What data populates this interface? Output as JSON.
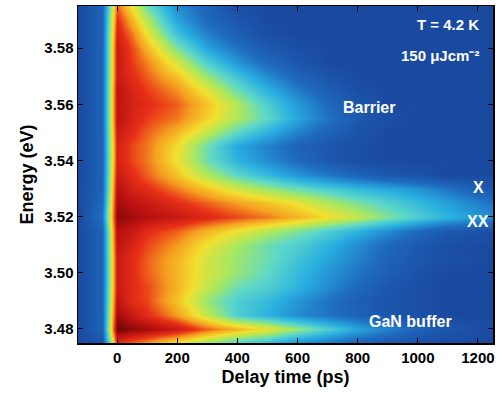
{
  "chart_data": {
    "type": "heatmap",
    "xlabel": "Delay time (ps)",
    "ylabel": "Energy (eV)",
    "annotations": [
      "T = 4.2 K",
      "150 μJcm⁻²",
      "Barrier",
      "X",
      "XX",
      "GaN buffer"
    ],
    "xlim": [
      -130,
      1250
    ],
    "xticks": [
      0,
      200,
      400,
      600,
      800,
      1000,
      1200
    ],
    "ylim": [
      3.475,
      3.595
    ],
    "yticks": [
      3.48,
      {
        "value": 3.5,
        "label": "3.50"
      },
      3.52,
      3.54,
      3.56,
      3.58
    ],
    "x": [
      -130,
      -50,
      0,
      50,
      100,
      200,
      300,
      400,
      500,
      600,
      700,
      800,
      900,
      1000,
      1100,
      1250
    ],
    "y": [
      3.475,
      3.48,
      3.485,
      3.49,
      3.495,
      3.5,
      3.505,
      3.51,
      3.515,
      3.52,
      3.525,
      3.53,
      3.535,
      3.54,
      3.545,
      3.55,
      3.555,
      3.56,
      3.565,
      3.57,
      3.575,
      3.58,
      3.585,
      3.59,
      3.595
    ],
    "cells": [
      [
        0.1,
        0.15,
        0.85,
        0.8,
        0.75,
        0.65,
        0.55,
        0.45,
        0.4,
        0.3,
        0.25,
        0.2,
        0.15,
        0.12,
        0.1,
        0.1
      ],
      [
        0.1,
        0.2,
        1.0,
        0.97,
        0.95,
        0.9,
        0.8,
        0.72,
        0.65,
        0.55,
        0.45,
        0.35,
        0.28,
        0.2,
        0.15,
        0.1
      ],
      [
        0.1,
        0.2,
        0.95,
        0.9,
        0.85,
        0.75,
        0.6,
        0.45,
        0.38,
        0.3,
        0.25,
        0.2,
        0.15,
        0.12,
        0.1,
        0.1
      ],
      [
        0.1,
        0.2,
        0.92,
        0.85,
        0.82,
        0.7,
        0.55,
        0.45,
        0.4,
        0.32,
        0.25,
        0.18,
        0.14,
        0.12,
        0.1,
        0.1
      ],
      [
        0.1,
        0.2,
        0.9,
        0.85,
        0.82,
        0.72,
        0.6,
        0.5,
        0.45,
        0.38,
        0.3,
        0.22,
        0.15,
        0.12,
        0.1,
        0.1
      ],
      [
        0.1,
        0.2,
        0.9,
        0.85,
        0.8,
        0.72,
        0.62,
        0.55,
        0.48,
        0.4,
        0.32,
        0.25,
        0.18,
        0.13,
        0.1,
        0.1
      ],
      [
        0.1,
        0.2,
        0.9,
        0.85,
        0.8,
        0.72,
        0.62,
        0.55,
        0.5,
        0.42,
        0.35,
        0.28,
        0.2,
        0.15,
        0.12,
        0.1
      ],
      [
        0.1,
        0.2,
        0.92,
        0.87,
        0.82,
        0.75,
        0.65,
        0.57,
        0.5,
        0.45,
        0.38,
        0.3,
        0.22,
        0.16,
        0.12,
        0.1
      ],
      [
        0.1,
        0.2,
        0.93,
        0.9,
        0.85,
        0.8,
        0.72,
        0.65,
        0.58,
        0.52,
        0.45,
        0.38,
        0.3,
        0.22,
        0.16,
        0.12
      ],
      [
        0.1,
        0.25,
        0.97,
        0.95,
        0.93,
        0.9,
        0.86,
        0.82,
        0.78,
        0.72,
        0.66,
        0.6,
        0.52,
        0.45,
        0.38,
        0.3
      ],
      [
        0.1,
        0.22,
        0.95,
        0.92,
        0.9,
        0.85,
        0.8,
        0.75,
        0.7,
        0.65,
        0.58,
        0.52,
        0.46,
        0.4,
        0.34,
        0.25
      ],
      [
        0.1,
        0.2,
        0.93,
        0.88,
        0.85,
        0.78,
        0.7,
        0.62,
        0.56,
        0.5,
        0.45,
        0.4,
        0.36,
        0.32,
        0.25,
        0.15
      ],
      [
        0.1,
        0.2,
        0.9,
        0.85,
        0.8,
        0.7,
        0.58,
        0.48,
        0.4,
        0.32,
        0.26,
        0.2,
        0.16,
        0.13,
        0.1,
        0.1
      ],
      [
        0.1,
        0.2,
        0.88,
        0.82,
        0.78,
        0.65,
        0.5,
        0.38,
        0.3,
        0.22,
        0.16,
        0.12,
        0.1,
        0.1,
        0.1,
        0.1
      ],
      [
        0.1,
        0.2,
        0.88,
        0.82,
        0.78,
        0.66,
        0.5,
        0.36,
        0.28,
        0.2,
        0.15,
        0.12,
        0.1,
        0.1,
        0.1,
        0.1
      ],
      [
        0.1,
        0.2,
        0.9,
        0.85,
        0.8,
        0.72,
        0.6,
        0.48,
        0.38,
        0.28,
        0.2,
        0.14,
        0.1,
        0.1,
        0.1,
        0.1
      ],
      [
        0.1,
        0.2,
        0.92,
        0.87,
        0.83,
        0.78,
        0.68,
        0.58,
        0.48,
        0.35,
        0.25,
        0.16,
        0.12,
        0.1,
        0.1,
        0.1
      ],
      [
        0.1,
        0.2,
        0.92,
        0.88,
        0.85,
        0.8,
        0.7,
        0.58,
        0.45,
        0.33,
        0.22,
        0.15,
        0.1,
        0.1,
        0.1,
        0.1
      ],
      [
        0.1,
        0.2,
        0.92,
        0.87,
        0.83,
        0.76,
        0.64,
        0.5,
        0.38,
        0.27,
        0.18,
        0.12,
        0.1,
        0.1,
        0.1,
        0.1
      ],
      [
        0.1,
        0.2,
        0.9,
        0.85,
        0.8,
        0.7,
        0.55,
        0.42,
        0.3,
        0.2,
        0.14,
        0.1,
        0.1,
        0.1,
        0.1,
        0.1
      ],
      [
        0.1,
        0.2,
        0.9,
        0.83,
        0.77,
        0.62,
        0.45,
        0.32,
        0.22,
        0.15,
        0.1,
        0.1,
        0.1,
        0.1,
        0.1,
        0.1
      ],
      [
        0.1,
        0.2,
        0.9,
        0.82,
        0.72,
        0.52,
        0.35,
        0.25,
        0.16,
        0.12,
        0.1,
        0.1,
        0.1,
        0.1,
        0.1,
        0.1
      ],
      [
        0.1,
        0.2,
        0.88,
        0.78,
        0.65,
        0.42,
        0.28,
        0.18,
        0.12,
        0.1,
        0.1,
        0.1,
        0.1,
        0.1,
        0.1,
        0.1
      ],
      [
        0.1,
        0.2,
        0.85,
        0.72,
        0.58,
        0.35,
        0.22,
        0.15,
        0.1,
        0.1,
        0.1,
        0.1,
        0.1,
        0.1,
        0.1,
        0.1
      ],
      [
        0.1,
        0.2,
        0.8,
        0.65,
        0.5,
        0.3,
        0.2,
        0.12,
        0.1,
        0.1,
        0.1,
        0.1,
        0.1,
        0.1,
        0.1,
        0.1
      ]
    ]
  }
}
